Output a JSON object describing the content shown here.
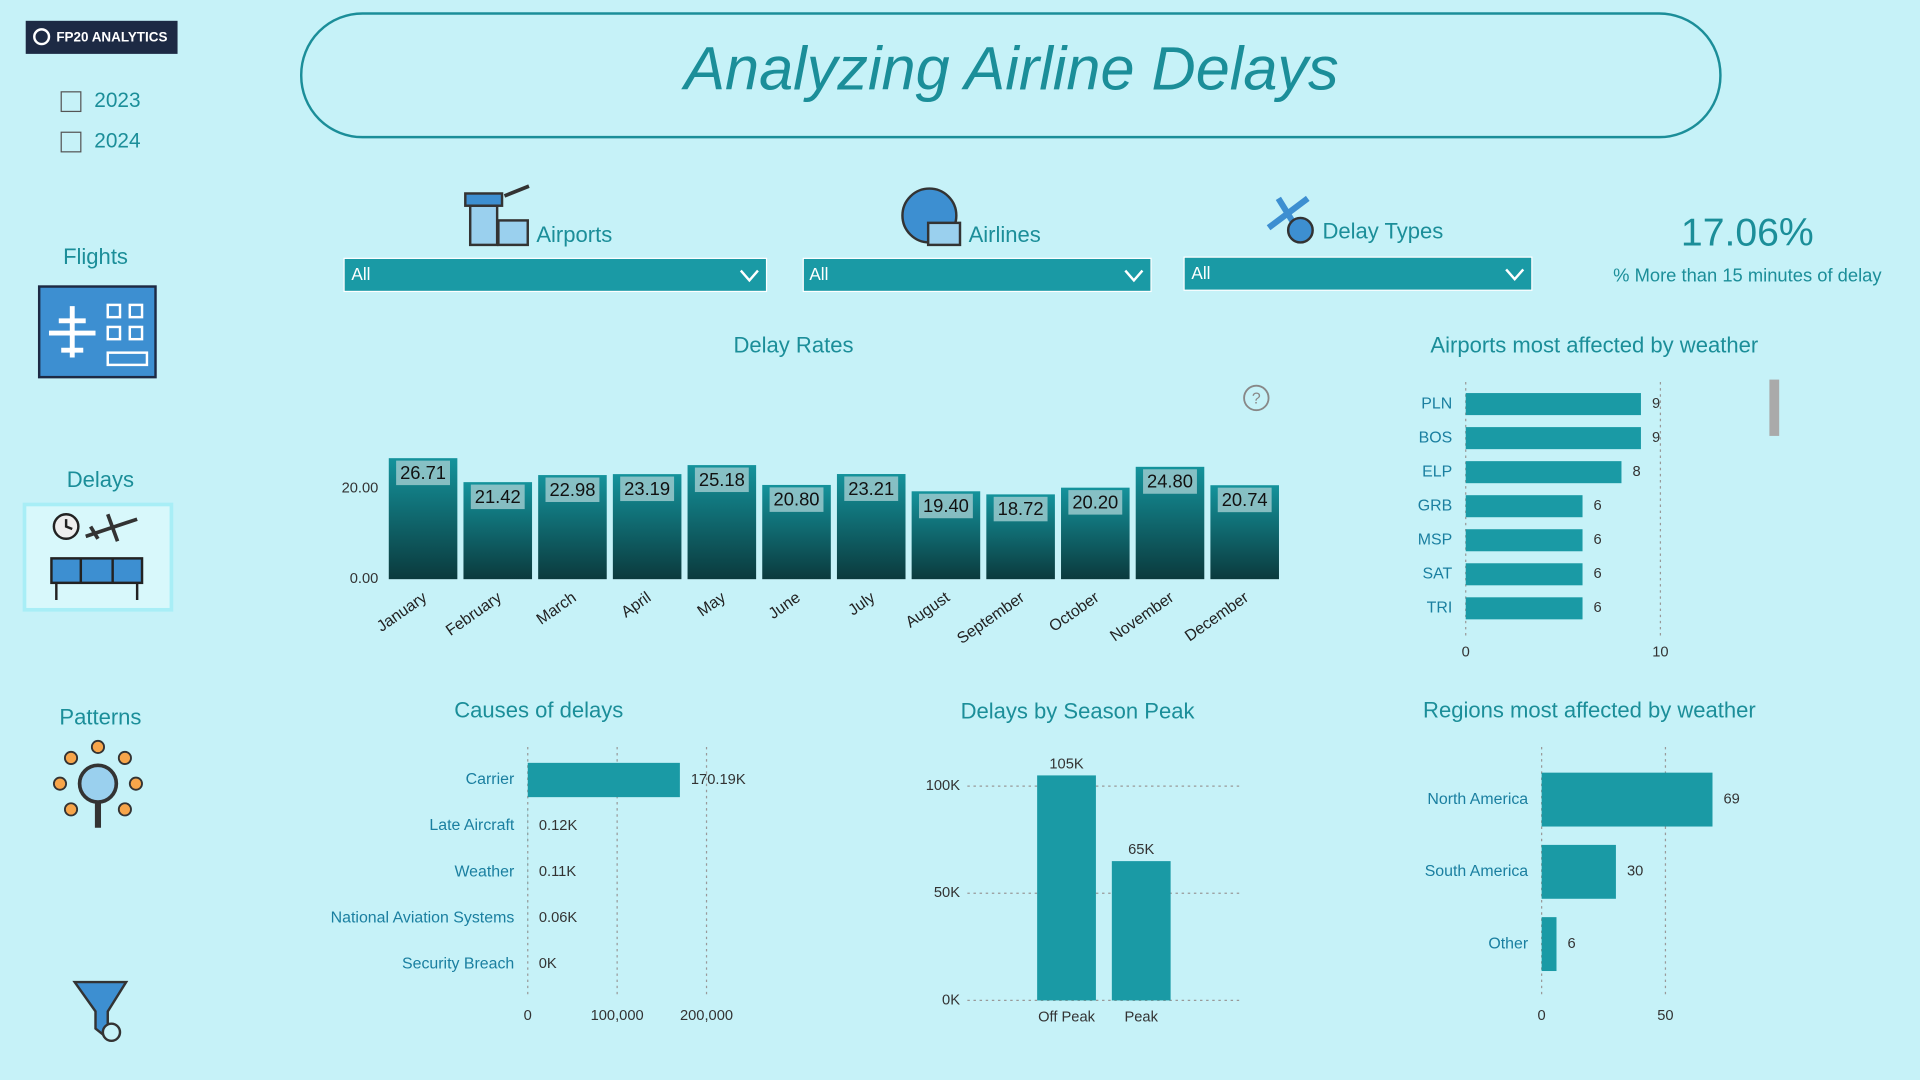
{
  "logo": "FP20 ANALYTICS",
  "years": [
    "2023",
    "2024"
  ],
  "nav": [
    "Flights",
    "Delays",
    "Patterns"
  ],
  "header": {
    "title": "Analyzing Airline Delays"
  },
  "filters": [
    {
      "label": "Airports",
      "value": "All"
    },
    {
      "label": "Airlines",
      "value": "All"
    },
    {
      "label": "Delay Types",
      "value": "All"
    }
  ],
  "kpi": {
    "value": "17.06%",
    "label": "% More than 15 minutes of delay"
  },
  "help_icon": "?",
  "chart_data": [
    {
      "type": "bar",
      "title": "Delay Rates",
      "color": "#14939c",
      "categories": [
        "January",
        "February",
        "March",
        "April",
        "May",
        "June",
        "July",
        "August",
        "September",
        "October",
        "November",
        "December"
      ],
      "values": [
        26.71,
        21.42,
        22.98,
        23.19,
        25.18,
        20.8,
        23.21,
        19.4,
        18.72,
        20.2,
        24.8,
        20.74
      ],
      "value_labels": [
        "26.71",
        "21.42",
        "22.98",
        "23.19",
        "25.18",
        "20.80",
        "23.21",
        "19.40",
        "18.72",
        "20.20",
        "24.80",
        "20.74"
      ],
      "ylim": [
        0,
        28
      ],
      "yticks": [
        {
          "value": 0,
          "label": "0.00"
        },
        {
          "value": 20,
          "label": "20.00"
        }
      ],
      "grid": false
    },
    {
      "type": "bar",
      "orientation": "horizontal",
      "title": "Airports most affected by weather",
      "color": "#1a9aa5",
      "categories": [
        "PLN",
        "BOS",
        "ELP",
        "GRB",
        "MSP",
        "SAT",
        "TRI"
      ],
      "values": [
        9,
        9,
        8,
        6,
        6,
        6,
        6
      ],
      "xlim": [
        0,
        15
      ],
      "xticks": [
        0,
        10
      ],
      "grid": true
    },
    {
      "type": "bar",
      "orientation": "horizontal",
      "title": "Causes of delays",
      "color": "#1a9aa5",
      "categories": [
        "Carrier",
        "Late Aircraft",
        "Weather",
        "National Aviation Systems",
        "Security Breach"
      ],
      "values": [
        170190,
        120,
        110,
        60,
        0
      ],
      "value_labels": [
        "170.19K",
        "0.12K",
        "0.11K",
        "0.06K",
        "0K"
      ],
      "xlim": [
        0,
        200000
      ],
      "xticks": [
        0,
        {
          "value": 100000,
          "label": "100,000"
        },
        {
          "value": 200000,
          "label": "200,000"
        }
      ],
      "grid": true
    },
    {
      "type": "bar",
      "title": "Delays by Season Peak",
      "color": "#1a9aa5",
      "categories": [
        "Off Peak",
        "Peak"
      ],
      "values": [
        105000,
        65000
      ],
      "value_labels": [
        "105K",
        "65K"
      ],
      "ylim": [
        0,
        110000
      ],
      "yticks": [
        {
          "value": 0,
          "label": "0K"
        },
        {
          "value": 50000,
          "label": "50K"
        },
        {
          "value": 100000,
          "label": "100K"
        }
      ],
      "grid": true
    },
    {
      "type": "bar",
      "orientation": "horizontal",
      "title": "Regions most affected by weather",
      "color": "#1a9aa5",
      "categories": [
        "North America",
        "South America",
        "Other"
      ],
      "values": [
        69,
        30,
        6
      ],
      "xlim": [
        0,
        90
      ],
      "xticks": [
        0,
        50
      ],
      "grid": true
    }
  ]
}
